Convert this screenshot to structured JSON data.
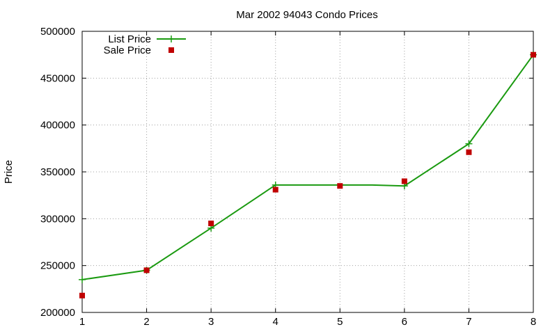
{
  "chart_data": {
    "type": "line",
    "title": "Mar 2002 94043 Condo Prices",
    "xlabel": "",
    "ylabel": "Price",
    "xlim": [
      1,
      8
    ],
    "ylim": [
      200000,
      500000
    ],
    "x_ticks": [
      1,
      2,
      3,
      4,
      5,
      6,
      7,
      8
    ],
    "y_ticks": [
      200000,
      250000,
      300000,
      350000,
      400000,
      450000,
      500000
    ],
    "grid": true,
    "legend_position": "top-left",
    "series": [
      {
        "name": "List Price",
        "style": "line-with-plus-markers",
        "color": "#1a9a10",
        "x": [
          1,
          2,
          3,
          4,
          5.5,
          6,
          7,
          8
        ],
        "y": [
          235000,
          245000,
          290000,
          336000,
          336000,
          335000,
          380000,
          475000
        ],
        "markers_x": [
          1,
          2,
          3,
          4,
          6,
          7,
          8
        ],
        "markers_y": [
          235000,
          245000,
          290000,
          336000,
          335000,
          380000,
          475000
        ]
      },
      {
        "name": "Sale Price",
        "style": "square-points",
        "color": "#c00000",
        "x": [
          1,
          2,
          3,
          4,
          5,
          6,
          7,
          8
        ],
        "y": [
          218000,
          245000,
          295000,
          331000,
          335000,
          340000,
          371000,
          475000
        ]
      }
    ]
  }
}
